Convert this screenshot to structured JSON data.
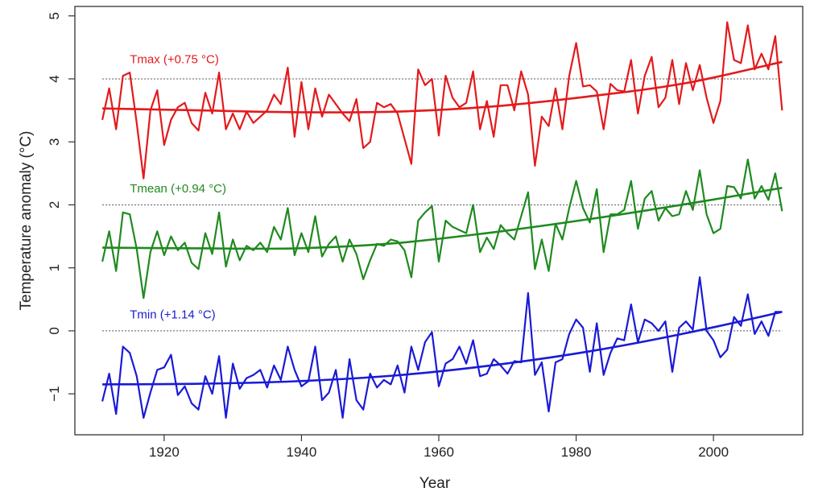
{
  "chart_data": {
    "type": "line",
    "title": "",
    "xlabel": "Year",
    "ylabel": "Temperature anomaly (°C)",
    "xlim": [
      1907,
      2013
    ],
    "ylim": [
      -1.65,
      5.15
    ],
    "xticks": [
      1920,
      1940,
      1960,
      1980,
      2000
    ],
    "yticks": [
      -1,
      0,
      1,
      2,
      3,
      4,
      5
    ],
    "reference_lines": [
      0,
      2,
      4
    ],
    "x": [
      1911,
      1912,
      1913,
      1914,
      1915,
      1916,
      1917,
      1918,
      1919,
      1920,
      1921,
      1922,
      1923,
      1924,
      1925,
      1926,
      1927,
      1928,
      1929,
      1930,
      1931,
      1932,
      1933,
      1934,
      1935,
      1936,
      1937,
      1938,
      1939,
      1940,
      1941,
      1942,
      1943,
      1944,
      1945,
      1946,
      1947,
      1948,
      1949,
      1950,
      1951,
      1952,
      1953,
      1954,
      1955,
      1956,
      1957,
      1958,
      1959,
      1960,
      1961,
      1962,
      1963,
      1964,
      1965,
      1966,
      1967,
      1968,
      1969,
      1970,
      1971,
      1972,
      1973,
      1974,
      1975,
      1976,
      1977,
      1978,
      1979,
      1980,
      1981,
      1982,
      1983,
      1984,
      1985,
      1986,
      1987,
      1988,
      1989,
      1990,
      1991,
      1992,
      1993,
      1994,
      1995,
      1996,
      1997,
      1998,
      1999,
      2000,
      2001,
      2002,
      2003,
      2004,
      2005,
      2006,
      2007,
      2008,
      2009,
      2010
    ],
    "series": [
      {
        "name": "Tmax",
        "label": "Tmax (+0.75 °C)",
        "color": "#e31a1c",
        "trend": [
          3.53,
          3.5,
          3.47,
          3.48,
          3.56,
          3.72,
          3.93,
          4.27
        ],
        "values": [
          3.35,
          3.85,
          3.2,
          4.05,
          4.1,
          3.3,
          2.42,
          3.5,
          3.82,
          2.95,
          3.35,
          3.55,
          3.62,
          3.3,
          3.18,
          3.78,
          3.45,
          4.1,
          3.2,
          3.45,
          3.2,
          3.48,
          3.3,
          3.4,
          3.5,
          3.75,
          3.6,
          4.18,
          3.08,
          3.95,
          3.2,
          3.85,
          3.4,
          3.75,
          3.6,
          3.45,
          3.33,
          3.68,
          2.9,
          3.0,
          3.62,
          3.55,
          3.6,
          3.45,
          3.05,
          2.65,
          4.15,
          3.9,
          4.0,
          3.1,
          4.05,
          3.7,
          3.55,
          3.62,
          4.12,
          3.2,
          3.65,
          3.08,
          3.9,
          3.9,
          3.5,
          4.12,
          3.75,
          2.62,
          3.4,
          3.25,
          3.85,
          3.2,
          4.05,
          4.57,
          3.88,
          3.9,
          3.8,
          3.2,
          3.92,
          3.82,
          3.8,
          4.3,
          3.45,
          4.05,
          4.35,
          3.55,
          3.7,
          4.3,
          3.6,
          4.25,
          3.82,
          4.22,
          3.7,
          3.3,
          3.65,
          4.9,
          4.3,
          4.25,
          4.85,
          4.15,
          4.4,
          4.15,
          4.68,
          3.5
        ]
      },
      {
        "name": "Tmean",
        "label": "Tmean (+0.94 °C)",
        "color": "#1f8a1f",
        "trend": [
          1.32,
          1.31,
          1.31,
          1.39,
          1.56,
          1.77,
          2.01,
          2.27
        ],
        "values": [
          1.1,
          1.58,
          0.95,
          1.88,
          1.85,
          1.3,
          0.52,
          1.25,
          1.58,
          1.2,
          1.5,
          1.28,
          1.4,
          1.08,
          0.98,
          1.55,
          1.22,
          1.88,
          1.02,
          1.45,
          1.12,
          1.35,
          1.28,
          1.4,
          1.25,
          1.65,
          1.45,
          1.95,
          1.2,
          1.55,
          1.25,
          1.82,
          1.18,
          1.38,
          1.5,
          1.1,
          1.45,
          1.22,
          0.82,
          1.12,
          1.38,
          1.35,
          1.45,
          1.42,
          1.28,
          0.85,
          1.75,
          1.88,
          1.98,
          1.1,
          1.75,
          1.65,
          1.6,
          1.55,
          2.0,
          1.25,
          1.48,
          1.3,
          1.68,
          1.55,
          1.45,
          1.82,
          2.2,
          0.98,
          1.45,
          0.95,
          1.7,
          1.45,
          1.95,
          2.38,
          1.95,
          1.72,
          2.25,
          1.25,
          1.85,
          1.85,
          1.92,
          2.38,
          1.62,
          2.1,
          2.22,
          1.75,
          1.95,
          1.82,
          1.85,
          2.22,
          1.92,
          2.55,
          1.85,
          1.55,
          1.62,
          2.3,
          2.28,
          2.1,
          2.72,
          2.1,
          2.3,
          2.08,
          2.5,
          1.9
        ]
      },
      {
        "name": "Tmin",
        "label": "Tmin (+1.14 °C)",
        "color": "#1a1ad6",
        "trend": [
          -0.85,
          -0.84,
          -0.8,
          -0.71,
          -0.55,
          -0.33,
          -0.04,
          0.3
        ],
        "values": [
          -1.12,
          -0.68,
          -1.32,
          -0.25,
          -0.35,
          -0.72,
          -1.38,
          -0.98,
          -0.62,
          -0.58,
          -0.38,
          -1.02,
          -0.88,
          -1.15,
          -1.25,
          -0.72,
          -1.0,
          -0.4,
          -1.38,
          -0.52,
          -0.92,
          -0.75,
          -0.7,
          -0.62,
          -0.9,
          -0.55,
          -0.78,
          -0.25,
          -0.62,
          -0.88,
          -0.8,
          -0.25,
          -1.1,
          -0.98,
          -0.62,
          -1.38,
          -0.45,
          -1.1,
          -1.25,
          -0.68,
          -0.9,
          -0.78,
          -0.85,
          -0.55,
          -0.98,
          -0.25,
          -0.62,
          -0.18,
          -0.02,
          -0.88,
          -0.52,
          -0.45,
          -0.25,
          -0.52,
          -0.15,
          -0.72,
          -0.68,
          -0.45,
          -0.55,
          -0.68,
          -0.48,
          -0.5,
          0.6,
          -0.7,
          -0.5,
          -1.28,
          -0.5,
          -0.45,
          -0.05,
          0.18,
          0.05,
          -0.65,
          0.12,
          -0.7,
          -0.35,
          -0.12,
          -0.15,
          0.42,
          -0.18,
          0.18,
          0.12,
          0.0,
          0.15,
          -0.65,
          0.05,
          0.15,
          0.02,
          0.85,
          0.0,
          -0.15,
          -0.42,
          -0.3,
          0.22,
          0.08,
          0.58,
          -0.05,
          0.15,
          -0.08,
          0.3,
          0.3
        ]
      }
    ]
  }
}
